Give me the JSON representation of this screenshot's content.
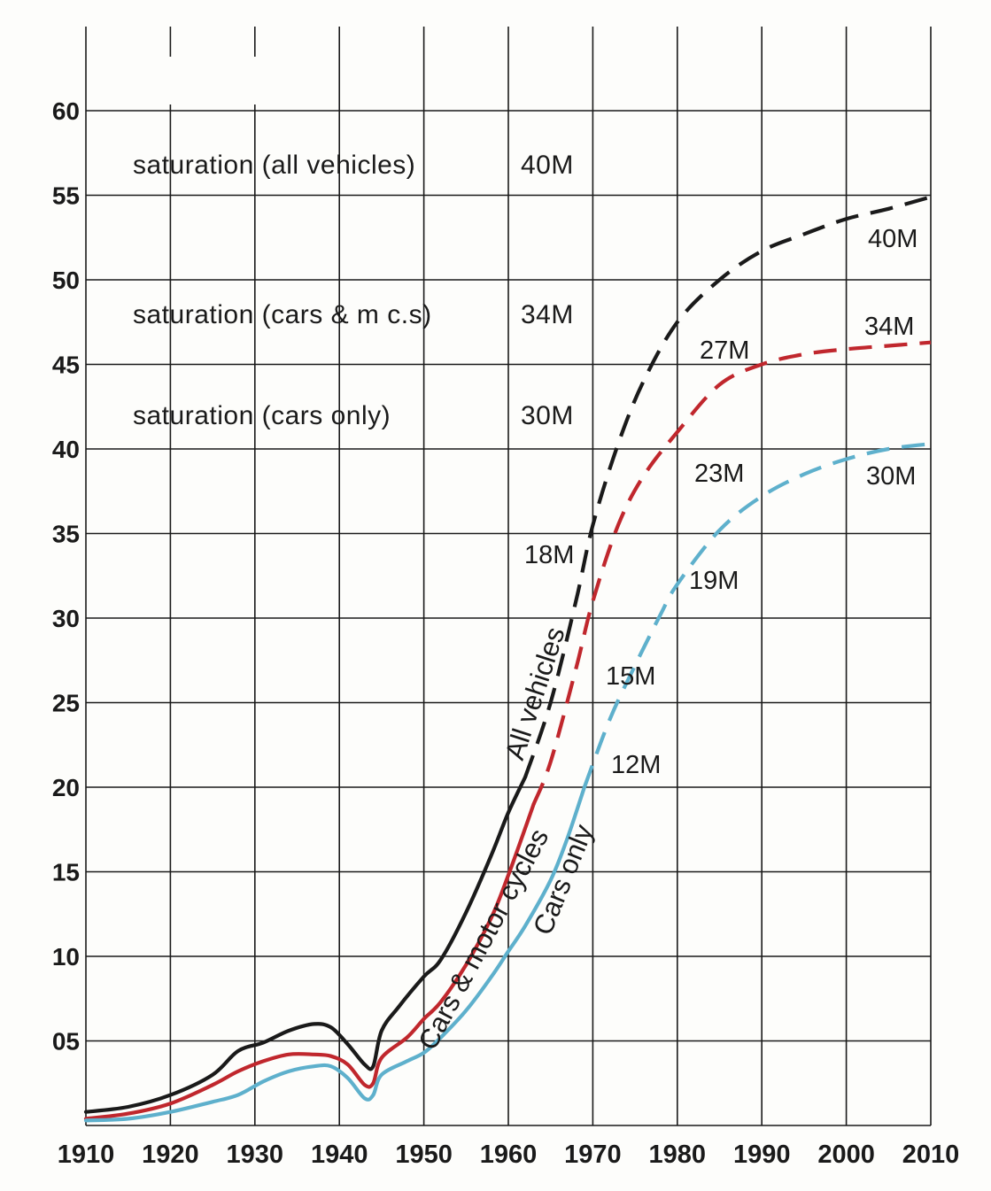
{
  "chart_data": {
    "type": "line",
    "title": "",
    "xlabel": "",
    "ylabel": "",
    "xlim": [
      1910,
      2010
    ],
    "ylim": [
      0,
      60
    ],
    "grid": true,
    "x_ticks": [
      {
        "value": 1910,
        "label": "1910"
      },
      {
        "value": 1920,
        "label": "1920"
      },
      {
        "value": 1930,
        "label": "1930"
      },
      {
        "value": 1940,
        "label": "1940"
      },
      {
        "value": 1950,
        "label": "1950"
      },
      {
        "value": 1960,
        "label": "1960"
      },
      {
        "value": 1970,
        "label": "1970"
      },
      {
        "value": 1980,
        "label": "1980"
      },
      {
        "value": 1990,
        "label": "1990"
      },
      {
        "value": 2000,
        "label": "2000"
      },
      {
        "value": 2010,
        "label": "2010"
      }
    ],
    "y_ticks": [
      {
        "value": 5,
        "label": "05"
      },
      {
        "value": 10,
        "label": "10"
      },
      {
        "value": 15,
        "label": "15"
      },
      {
        "value": 20,
        "label": "20"
      },
      {
        "value": 25,
        "label": "25"
      },
      {
        "value": 30,
        "label": "30"
      },
      {
        "value": 35,
        "label": "35"
      },
      {
        "value": 40,
        "label": "40"
      },
      {
        "value": 45,
        "label": "45"
      },
      {
        "value": 50,
        "label": "50"
      },
      {
        "value": 55,
        "label": "55"
      },
      {
        "value": 60,
        "label": "60"
      }
    ],
    "series": [
      {
        "name": "All vehicles",
        "color": "#1a1a1a",
        "actual": [
          [
            1910,
            0.8
          ],
          [
            1915,
            1.1
          ],
          [
            1920,
            1.8
          ],
          [
            1925,
            3.0
          ],
          [
            1928,
            4.4
          ],
          [
            1931,
            4.9
          ],
          [
            1934,
            5.6
          ],
          [
            1937,
            6.0
          ],
          [
            1939,
            5.8
          ],
          [
            1941,
            4.8
          ],
          [
            1943,
            3.6
          ],
          [
            1944,
            3.5
          ],
          [
            1945,
            5.6
          ],
          [
            1947,
            7.0
          ],
          [
            1950,
            8.8
          ],
          [
            1952,
            9.8
          ],
          [
            1955,
            12.6
          ],
          [
            1958,
            16.0
          ],
          [
            1960,
            18.5
          ],
          [
            1962,
            20.6
          ]
        ],
        "projected": [
          [
            1962,
            20.6
          ],
          [
            1965,
            25.0
          ],
          [
            1968,
            31.0
          ],
          [
            1970,
            35.5
          ],
          [
            1973,
            40.3
          ],
          [
            1976,
            44.0
          ],
          [
            1980,
            47.5
          ],
          [
            1985,
            50.0
          ],
          [
            1990,
            51.7
          ],
          [
            1995,
            52.7
          ],
          [
            2000,
            53.6
          ],
          [
            2005,
            54.2
          ],
          [
            2010,
            54.9
          ]
        ]
      },
      {
        "name": "Cars & motor cycles",
        "color": "#c0272d",
        "actual": [
          [
            1910,
            0.4
          ],
          [
            1915,
            0.7
          ],
          [
            1920,
            1.3
          ],
          [
            1925,
            2.4
          ],
          [
            1928,
            3.2
          ],
          [
            1931,
            3.8
          ],
          [
            1934,
            4.2
          ],
          [
            1937,
            4.2
          ],
          [
            1939,
            4.1
          ],
          [
            1941,
            3.6
          ],
          [
            1943,
            2.4
          ],
          [
            1944,
            2.5
          ],
          [
            1945,
            4.0
          ],
          [
            1948,
            5.2
          ],
          [
            1950,
            6.3
          ],
          [
            1952,
            7.3
          ],
          [
            1955,
            9.5
          ],
          [
            1958,
            12.3
          ],
          [
            1960,
            14.8
          ],
          [
            1963,
            19.0
          ]
        ],
        "projected": [
          [
            1963,
            19.0
          ],
          [
            1965,
            21.5
          ],
          [
            1968,
            27.0
          ],
          [
            1970,
            31.0
          ],
          [
            1973,
            35.5
          ],
          [
            1976,
            38.4
          ],
          [
            1980,
            41.0
          ],
          [
            1985,
            43.8
          ],
          [
            1990,
            45.0
          ],
          [
            1995,
            45.6
          ],
          [
            2000,
            45.9
          ],
          [
            2005,
            46.1
          ],
          [
            2010,
            46.3
          ]
        ]
      },
      {
        "name": "Cars only",
        "color": "#5eb0cc",
        "actual": [
          [
            1910,
            0.3
          ],
          [
            1915,
            0.4
          ],
          [
            1920,
            0.8
          ],
          [
            1925,
            1.4
          ],
          [
            1928,
            1.8
          ],
          [
            1931,
            2.6
          ],
          [
            1934,
            3.2
          ],
          [
            1937,
            3.5
          ],
          [
            1939,
            3.5
          ],
          [
            1941,
            2.8
          ],
          [
            1943,
            1.6
          ],
          [
            1944,
            1.8
          ],
          [
            1945,
            3.0
          ],
          [
            1948,
            3.8
          ],
          [
            1950,
            4.3
          ],
          [
            1952,
            5.2
          ],
          [
            1955,
            6.8
          ],
          [
            1958,
            8.8
          ],
          [
            1960,
            10.3
          ],
          [
            1962,
            11.8
          ],
          [
            1965,
            14.5
          ],
          [
            1967,
            17.0
          ],
          [
            1969,
            20.0
          ]
        ],
        "projected": [
          [
            1969,
            20.0
          ],
          [
            1972,
            24.0
          ],
          [
            1975,
            27.2
          ],
          [
            1978,
            30.2
          ],
          [
            1980,
            32.0
          ],
          [
            1985,
            35.2
          ],
          [
            1990,
            37.2
          ],
          [
            1995,
            38.5
          ],
          [
            2000,
            39.4
          ],
          [
            2005,
            40.0
          ],
          [
            2010,
            40.3
          ]
        ]
      }
    ],
    "curve_labels": [
      {
        "text": "All vehicles",
        "series": 0
      },
      {
        "text": "Cars & motor cycles",
        "series": 1
      },
      {
        "text": "Cars only",
        "series": 2
      }
    ],
    "saturation_notes": [
      {
        "label": "saturation (all vehicles)",
        "value": "40M"
      },
      {
        "label": "saturation (cars & m c.s)",
        "value": "34M"
      },
      {
        "label": "saturation (cars only)",
        "value": "30M"
      }
    ],
    "point_annotations": [
      {
        "text": "18M",
        "series": 0,
        "x": 1970
      },
      {
        "text": "27M",
        "series": 0,
        "x": 1980
      },
      {
        "text": "40M",
        "series": 0,
        "x": 2010
      },
      {
        "text": "15M",
        "series": 1,
        "x": 1970
      },
      {
        "text": "23M",
        "series": 1,
        "x": 1980
      },
      {
        "text": "34M",
        "series": 1,
        "x": 2010
      },
      {
        "text": "12M",
        "series": 2,
        "x": 1970
      },
      {
        "text": "19M",
        "series": 2,
        "x": 1980
      },
      {
        "text": "30M",
        "series": 2,
        "x": 2010
      }
    ]
  }
}
